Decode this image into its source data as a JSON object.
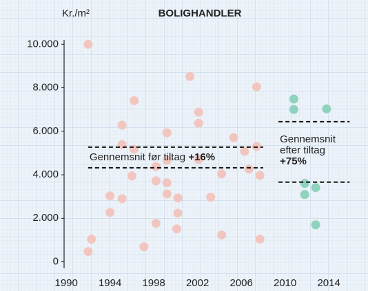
{
  "chart_data": {
    "type": "scatter",
    "title": "BOLIGHANDLER",
    "y_label": "Kr./m²",
    "xlim": [
      1989.8,
      2016.7
    ],
    "ylim": [
      -300,
      10200
    ],
    "xticks": [
      1990,
      1994,
      1998,
      2002,
      2006,
      2010,
      2014
    ],
    "yticks": [
      {
        "value": 0,
        "label": "0"
      },
      {
        "value": 2000,
        "label": "2.000"
      },
      {
        "value": 4000,
        "label": "4.000"
      },
      {
        "value": 6000,
        "label": "6.000"
      },
      {
        "value": 8000,
        "label": "8.000"
      },
      {
        "value": 10000,
        "label": "10.000"
      }
    ],
    "grid": true,
    "series": [
      {
        "color": "#f2c6c0",
        "x": [
          1992,
          1992,
          1992.3,
          1994,
          1994,
          1995.1,
          1995.1,
          1995.1,
          1996.2,
          1996.2,
          1996,
          1997.1,
          1998.2,
          1998.2,
          1998.2,
          1999.2,
          1999.2,
          1999.2,
          1999.2,
          2000.2,
          2000.2,
          2000.1,
          2001.3,
          2002.1,
          2002.1,
          2002.1,
          2003.2,
          2004.2,
          2004.2,
          2005.3,
          2006.3,
          2006.7,
          2007.4,
          2007.4,
          2007.7,
          2007.7
        ],
        "values": [
          10000,
          470,
          1040,
          3030,
          2270,
          2900,
          6280,
          5390,
          7410,
          5170,
          3940,
          690,
          4380,
          3720,
          1770,
          5930,
          4670,
          3630,
          3120,
          2930,
          2240,
          1510,
          8520,
          6880,
          6370,
          4700,
          2970,
          4040,
          1230,
          5710,
          5080,
          4260,
          8040,
          5300,
          3970,
          1040
        ]
      },
      {
        "color": "#8fd3bf",
        "x": [
          2010.8,
          2010.8,
          2013.8,
          2011.8,
          2011.8,
          2012.8,
          2012.8
        ],
        "values": [
          7480,
          7000,
          7030,
          3600,
          3090,
          3410,
          1700
        ]
      }
    ],
    "bands": [
      {
        "y": [
          5270,
          4320
        ],
        "x": [
          1992,
          2008
        ],
        "text": "Gennemsnit før tiltag ",
        "change": "+16%"
      },
      {
        "y": [
          6440,
          3660
        ],
        "x": [
          2009.4,
          2015.9
        ],
        "text": [
          "Gennemsnit",
          "efter tiltag"
        ],
        "change": "+75%"
      }
    ]
  }
}
